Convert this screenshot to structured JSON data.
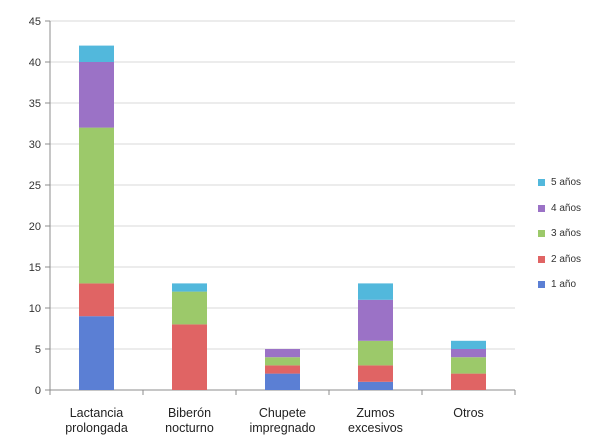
{
  "chart_data": {
    "type": "bar",
    "stacked": true,
    "categories": [
      [
        "Lactancia",
        "prolongada"
      ],
      [
        "Biberón",
        "nocturno"
      ],
      [
        "Chupete",
        "impregnado"
      ],
      [
        "Zumos",
        "excesivos"
      ],
      [
        "Otros"
      ]
    ],
    "series": [
      {
        "name": "1 año",
        "color": "#5b7fd4",
        "values": [
          9,
          0,
          2,
          1,
          0
        ]
      },
      {
        "name": "2 años",
        "color": "#e06464",
        "values": [
          4,
          8,
          1,
          2,
          2
        ]
      },
      {
        "name": "3 años",
        "color": "#9cc96a",
        "values": [
          19,
          4,
          1,
          3,
          2
        ]
      },
      {
        "name": "4 años",
        "color": "#9b72c6",
        "values": [
          8,
          0,
          1,
          5,
          1
        ]
      },
      {
        "name": "5 años",
        "color": "#52b8dc",
        "values": [
          2,
          1,
          0,
          2,
          1
        ]
      }
    ],
    "title": "",
    "xlabel": "",
    "ylabel": "",
    "ylim": [
      0,
      45
    ],
    "yticks": [
      0,
      5,
      10,
      15,
      20,
      25,
      30,
      35,
      40,
      45
    ],
    "grid": true,
    "legend": "right",
    "legend_order": "reverse"
  }
}
